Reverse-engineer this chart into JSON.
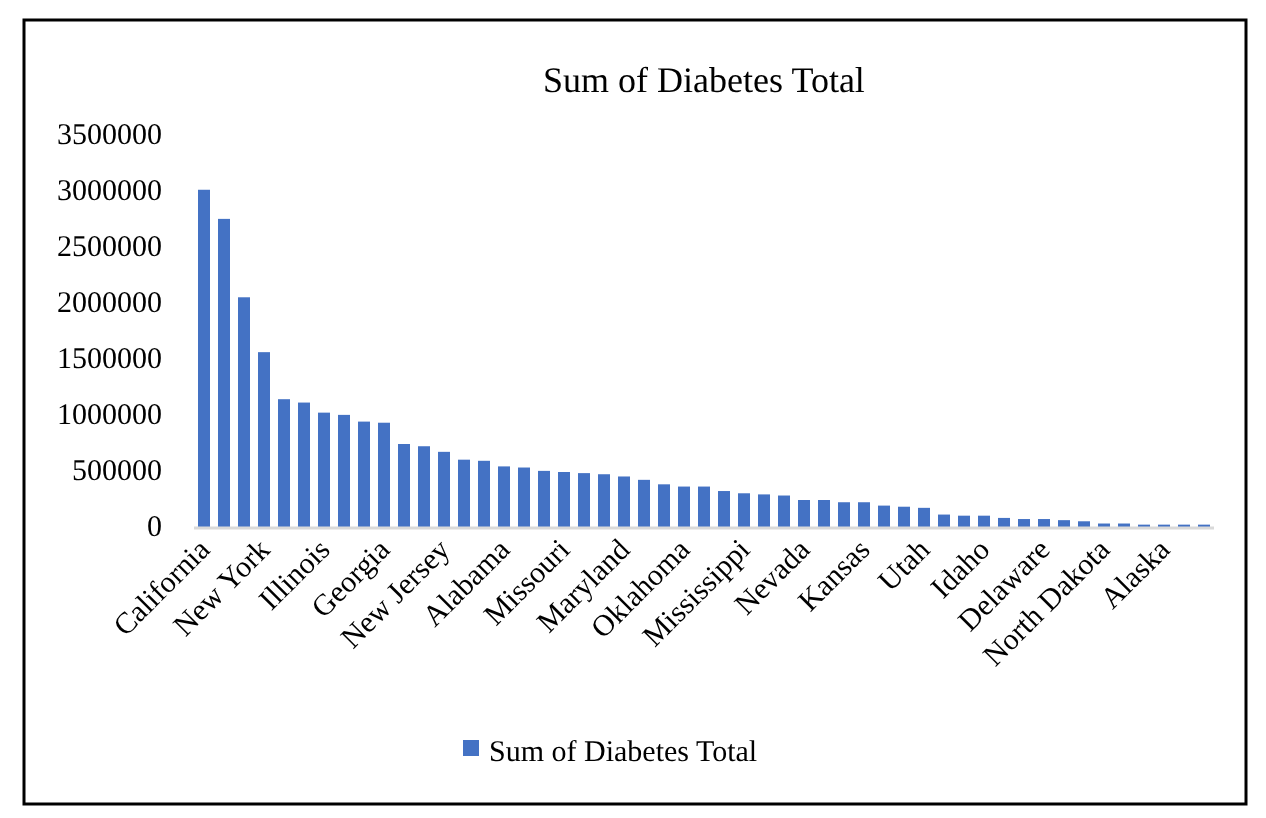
{
  "chart_data": {
    "type": "bar",
    "title": "Sum of Diabetes Total",
    "categories": [
      "California",
      null,
      null,
      "New York",
      null,
      null,
      "Illinois",
      null,
      null,
      "Georgia",
      null,
      null,
      "New Jersey",
      null,
      null,
      "Alabama",
      null,
      null,
      "Missouri",
      null,
      null,
      "Maryland",
      null,
      null,
      "Oklahoma",
      null,
      null,
      "Mississippi",
      null,
      null,
      "Nevada",
      null,
      null,
      "Kansas",
      null,
      null,
      "Utah",
      null,
      null,
      "Idaho",
      null,
      null,
      "Delaware",
      null,
      null,
      "North Dakota",
      null,
      null,
      "Alaska",
      null,
      null
    ],
    "series": [
      {
        "name": "Sum of Diabetes Total",
        "color": "#4472c4",
        "values": [
          3020000,
          2760000,
          2060000,
          1570000,
          1150000,
          1120000,
          1030000,
          1010000,
          950000,
          940000,
          750000,
          730000,
          680000,
          610000,
          600000,
          550000,
          540000,
          510000,
          500000,
          490000,
          480000,
          460000,
          430000,
          390000,
          370000,
          370000,
          330000,
          310000,
          300000,
          290000,
          250000,
          250000,
          230000,
          230000,
          200000,
          190000,
          180000,
          120000,
          110000,
          110000,
          90000,
          80000,
          80000,
          70000,
          60000,
          40000,
          40000,
          30000,
          30000,
          30000,
          30000
        ]
      }
    ],
    "ylim": [
      0,
      3500000
    ],
    "yticks": [
      0,
      500000,
      1000000,
      1500000,
      2000000,
      2500000,
      3000000,
      3500000
    ],
    "grid": false,
    "legend": "bottom"
  }
}
